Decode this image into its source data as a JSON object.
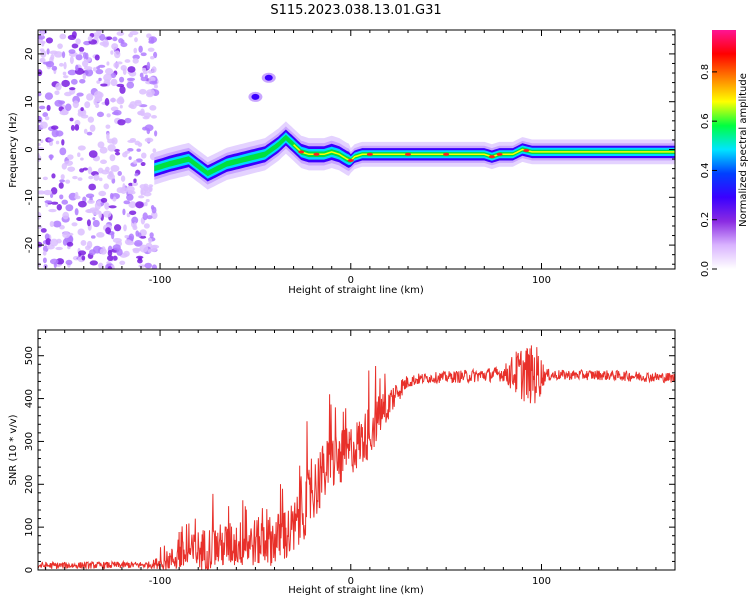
{
  "title": "S115.2023.038.13.01.G31",
  "chart_data": [
    {
      "type": "heatmap",
      "xlabel": "Height of straight line (km)",
      "ylabel": "Frequency (Hz)",
      "xlim": [
        -164,
        170
      ],
      "ylim": [
        -25,
        25
      ],
      "x_ticks": [
        -100,
        0,
        100
      ],
      "y_ticks": [
        -20,
        -10,
        0,
        10,
        20
      ],
      "x_tick_labels": [
        "-100",
        "0",
        "100"
      ],
      "y_tick_labels": [
        "-20",
        "-10",
        "0",
        "10",
        "20"
      ],
      "colorbar": {
        "label": "Normalized spectral amplitude",
        "range": [
          0,
          0.97
        ],
        "ticks": [
          0,
          0.2,
          0.4,
          0.6,
          0.8
        ],
        "tick_labels": [
          "0.0",
          "0.2",
          "0.4",
          "0.6",
          "0.8"
        ],
        "colors": [
          "#ffffff",
          "#d9b3ff",
          "#8a2be2",
          "#3a00ff",
          "#0040ff",
          "#00e5ff",
          "#00ff40",
          "#ffff00",
          "#ff8000",
          "#ff0000",
          "#ff1493"
        ]
      },
      "ridge": {
        "x": [
          -103,
          -95,
          -85,
          -75,
          -65,
          -55,
          -45,
          -38,
          -34,
          -30,
          -26,
          -22,
          -18,
          -14,
          -10,
          -6,
          -2,
          0,
          2,
          6,
          10,
          20,
          40,
          60,
          70,
          74,
          78,
          85,
          90,
          95,
          120,
          150,
          170
        ],
        "freq": [
          -4,
          -3,
          -2,
          -5,
          -3,
          -2,
          -1,
          1,
          2.5,
          1,
          -0.5,
          -1,
          -1,
          -1,
          -0.5,
          -1,
          -2,
          -2.3,
          -1.5,
          -1,
          -1,
          -1,
          -1,
          -1,
          -1,
          -1.5,
          -1,
          -1,
          0,
          -0.5,
          -0.5,
          -0.5,
          -0.5
        ]
      },
      "noise_region_xlim": [
        -164,
        -102
      ]
    },
    {
      "type": "line",
      "xlabel": "Height of straight line (km)",
      "ylabel": "SNR (10 * v/v)",
      "xlim": [
        -164,
        170
      ],
      "ylim": [
        0,
        560
      ],
      "x_ticks": [
        -100,
        0,
        100
      ],
      "y_ticks": [
        0,
        100,
        200,
        300,
        400,
        500
      ],
      "x_tick_labels": [
        "-100",
        "0",
        "100"
      ],
      "y_tick_labels": [
        "0",
        "100",
        "200",
        "300",
        "400",
        "500"
      ],
      "color": "#e8302a",
      "trend": {
        "x": [
          -164,
          -105,
          -100,
          -90,
          -80,
          -70,
          -60,
          -50,
          -40,
          -30,
          -25,
          -20,
          -15,
          -10,
          -5,
          0,
          5,
          10,
          15,
          20,
          25,
          30,
          35,
          40,
          50,
          60,
          70,
          80,
          90,
          95,
          100,
          110,
          130,
          150,
          170
        ],
        "y": [
          10,
          12,
          18,
          30,
          45,
          55,
          60,
          65,
          70,
          90,
          140,
          180,
          220,
          250,
          260,
          280,
          300,
          320,
          360,
          390,
          420,
          440,
          445,
          448,
          450,
          452,
          455,
          458,
          460,
          455,
          455,
          455,
          455,
          452,
          448
        ]
      },
      "noise_amplitude": {
        "x": [
          -164,
          -105,
          -95,
          -80,
          -60,
          -40,
          -30,
          -20,
          -10,
          0,
          10,
          20,
          30,
          40,
          80,
          88,
          92,
          98,
          102,
          110,
          170
        ],
        "y": [
          8,
          8,
          25,
          50,
          55,
          60,
          70,
          75,
          70,
          60,
          60,
          40,
          15,
          12,
          18,
          60,
          70,
          70,
          15,
          12,
          12
        ]
      }
    }
  ]
}
